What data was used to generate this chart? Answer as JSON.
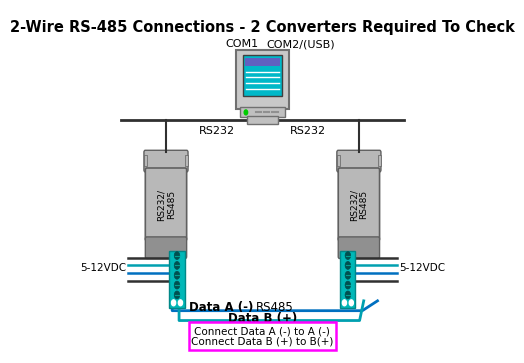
{
  "title": "2-Wire RS-485 Connections - 2 Converters Required To Check",
  "title_fontsize": 10.5,
  "bg_color": "#ffffff",
  "fig_w": 4.7,
  "fig_h": 3.49,
  "screen_color": "#00b8c8",
  "converter_gray": "#b8b8b8",
  "converter_dark_gray": "#909090",
  "board_teal": "#00b8b8",
  "board_dark": "#008888",
  "wire_black": "#303030",
  "wire_blue": "#0070c0",
  "wire_teal": "#00a0b0",
  "wire_dark": "#404040",
  "magenta": "#ff00ff",
  "com1_label": "COM1",
  "com2_label": "COM2/(USB)",
  "rs232_l": "RS232",
  "rs232_r": "RS232",
  "conv_label": "RS232/\nRS485",
  "pwr_l": "5-12VDC",
  "pwr_r": "5-12VDC",
  "data_a": "Data A (-)",
  "rs485": "RS485",
  "data_b": "Data B (+)",
  "inst1": "Connect Data A (-) to A (-)",
  "inst2": "Connect Data B (+) to B(+)"
}
